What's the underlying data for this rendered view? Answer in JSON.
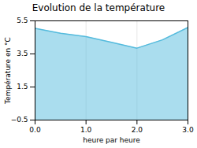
{
  "chart_data": {
    "type": "area",
    "title": "Evolution de la température",
    "xlabel": "heure par heure",
    "ylabel": "Température en °C",
    "x": [
      0,
      0.5,
      1,
      1.5,
      2,
      2.5,
      3
    ],
    "values": [
      5.05,
      4.75,
      4.55,
      4.2,
      3.85,
      4.35,
      5.1
    ],
    "xlim": [
      0,
      3
    ],
    "ylim": [
      -0.5,
      5.5
    ],
    "xticks": [
      0,
      1,
      2,
      3
    ],
    "yticks": [
      -0.5,
      1.5,
      3.5,
      5.5
    ],
    "color": "#55bbdd",
    "grid": "x"
  }
}
